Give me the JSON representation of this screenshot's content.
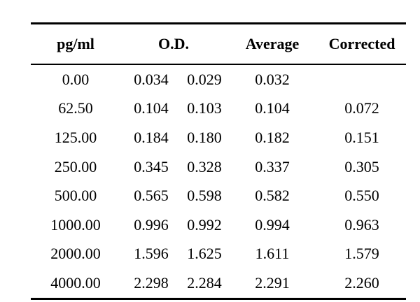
{
  "table": {
    "headers": {
      "concentration": "pg/ml",
      "od": "O.D.",
      "average": "Average",
      "corrected": "Corrected"
    },
    "rows": [
      {
        "concentration": "0.00",
        "od1": "0.034",
        "od2": "0.029",
        "average": "0.032",
        "corrected": ""
      },
      {
        "concentration": "62.50",
        "od1": "0.104",
        "od2": "0.103",
        "average": "0.104",
        "corrected": "0.072"
      },
      {
        "concentration": "125.00",
        "od1": "0.184",
        "od2": "0.180",
        "average": "0.182",
        "corrected": "0.151"
      },
      {
        "concentration": "250.00",
        "od1": "0.345",
        "od2": "0.328",
        "average": "0.337",
        "corrected": "0.305"
      },
      {
        "concentration": "500.00",
        "od1": "0.565",
        "od2": "0.598",
        "average": "0.582",
        "corrected": "0.550"
      },
      {
        "concentration": "1000.00",
        "od1": "0.996",
        "od2": "0.992",
        "average": "0.994",
        "corrected": "0.963"
      },
      {
        "concentration": "2000.00",
        "od1": "1.596",
        "od2": "1.625",
        "average": "1.611",
        "corrected": "1.579"
      },
      {
        "concentration": "4000.00",
        "od1": "2.298",
        "od2": "2.284",
        "average": "2.291",
        "corrected": "2.260"
      }
    ]
  }
}
